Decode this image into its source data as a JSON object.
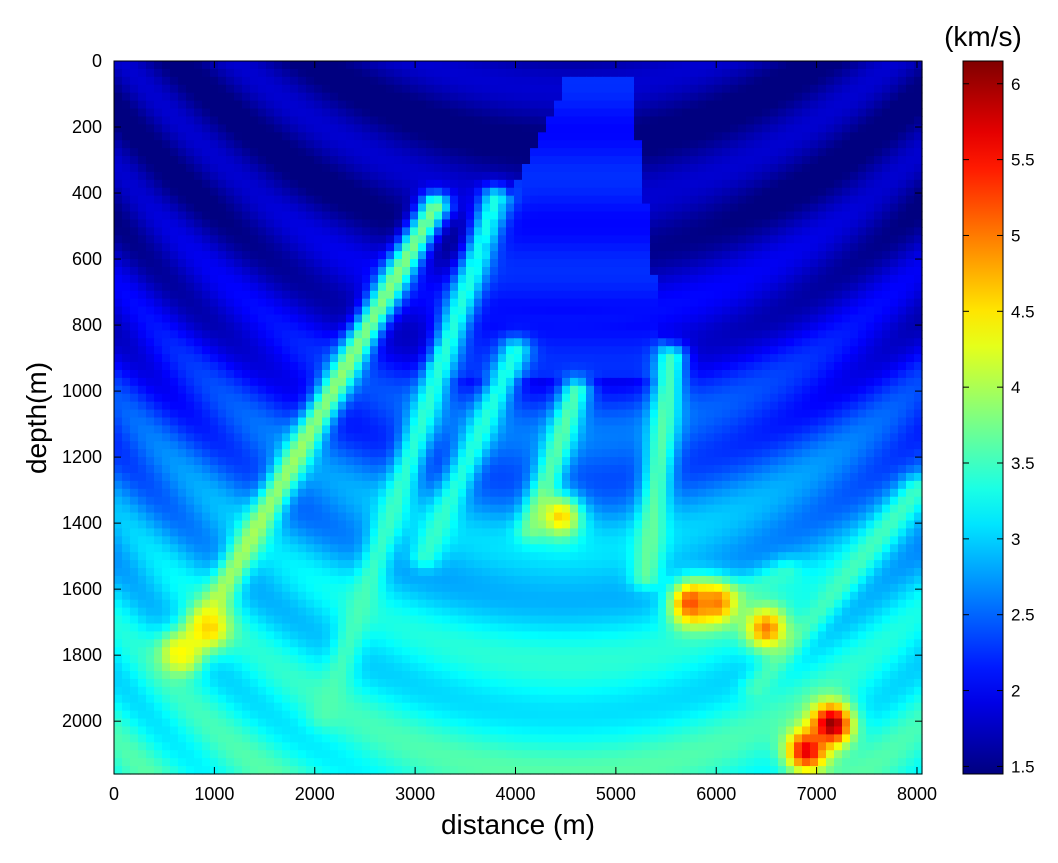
{
  "chart_data": {
    "type": "heatmap",
    "title": "",
    "xlabel": "distance (m)",
    "ylabel": "depth(m)",
    "xlim": [
      0,
      8050
    ],
    "ylim": [
      0,
      2160
    ],
    "y_reversed": true,
    "x_ticks": [
      0,
      1000,
      2000,
      3000,
      4000,
      5000,
      6000,
      7000,
      8000
    ],
    "y_ticks": [
      0,
      200,
      400,
      600,
      800,
      1000,
      1200,
      1400,
      1600,
      1800,
      2000
    ],
    "x_tick_labels": [
      "0",
      "1000",
      "2000",
      "3000",
      "4000",
      "5000",
      "6000",
      "7000",
      "8000"
    ],
    "y_tick_labels": [
      "0",
      "200",
      "400",
      "600",
      "800",
      "1000",
      "1200",
      "1400",
      "1600",
      "1800",
      "2000"
    ],
    "colorbar": {
      "label": "(km/s)",
      "range": [
        1.45,
        6.15
      ],
      "colormap": "jet",
      "ticks": [
        1.5,
        2,
        2.5,
        3,
        3.5,
        4,
        4.5,
        5,
        5.5,
        6
      ],
      "tick_labels": [
        "1.5",
        "2",
        "2.5",
        "3",
        "3.5",
        "4",
        "4.5",
        "5",
        "5.5",
        "6"
      ]
    },
    "grid": false,
    "features": {
      "trend_shallow": [
        [
          0,
          1.6
        ],
        [
          400,
          1.6
        ],
        [
          800,
          1.9
        ],
        [
          1200,
          2.5
        ],
        [
          1600,
          3.05
        ],
        [
          1900,
          3.25
        ],
        [
          2160,
          3.4
        ]
      ],
      "reflectors": [
        {
          "x0": 700,
          "y0": 1810,
          "x1": 3200,
          "y1": 440,
          "v": 4.15
        },
        {
          "x0": 2100,
          "y0": 1980,
          "x1": 3800,
          "y1": 420,
          "v": 3.6
        },
        {
          "x0": 3100,
          "y0": 1500,
          "x1": 4000,
          "y1": 880,
          "v": 3.55
        },
        {
          "x0": 4150,
          "y0": 1420,
          "x1": 4600,
          "y1": 1000,
          "v": 3.8
        },
        {
          "x0": 5300,
          "y0": 1560,
          "x1": 5550,
          "y1": 900,
          "v": 3.8
        },
        {
          "x0": 5700,
          "y0": 1700,
          "x1": 6700,
          "y1": 1550,
          "v": 3.5
        },
        {
          "x0": 6400,
          "y0": 1900,
          "x1": 8000,
          "y1": 1300,
          "v": 3.6
        }
      ],
      "anomalies": [
        {
          "x": 7150,
          "y": 2010,
          "v": 6.1
        },
        {
          "x": 6900,
          "y": 2090,
          "v": 5.7
        },
        {
          "x": 5750,
          "y": 1640,
          "v": 5.3
        },
        {
          "x": 6000,
          "y": 1640,
          "v": 5.0
        },
        {
          "x": 6500,
          "y": 1720,
          "v": 5.0
        },
        {
          "x": 4450,
          "y": 1380,
          "v": 4.6
        },
        {
          "x": 950,
          "y": 1720,
          "v": 4.6
        },
        {
          "x": 650,
          "y": 1790,
          "v": 4.4
        }
      ],
      "overburden_wedge": {
        "top": 60,
        "x_top": [
          4500,
          5150
        ],
        "x_bottom": [
          3100,
          5500
        ],
        "bottom_depth": 950,
        "v": 2.15
      }
    }
  }
}
